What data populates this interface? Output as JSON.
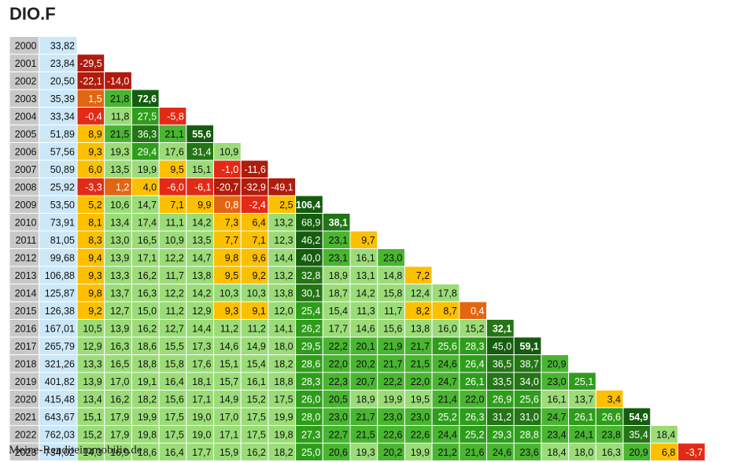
{
  "title": "DIO.F",
  "footer": "Meine-Renditeimmobilie.de",
  "chart_data": {
    "type": "table",
    "title": "DIO.F",
    "years": [
      2000,
      2001,
      2002,
      2003,
      2004,
      2005,
      2006,
      2007,
      2008,
      2009,
      2010,
      2011,
      2012,
      2013,
      2014,
      2015,
      2016,
      2017,
      2018,
      2019,
      2020,
      2021,
      2022,
      2023
    ],
    "prices": [
      "33,82",
      "23,84",
      "20,50",
      "35,39",
      "33,34",
      "51,89",
      "57,56",
      "50,89",
      "25,92",
      "53,50",
      "73,91",
      "81,05",
      "99,68",
      "106,88",
      "125,87",
      "126,38",
      "167,01",
      "265,79",
      "321,26",
      "401,82",
      "415,48",
      "643,67",
      "762,03",
      "734,02"
    ],
    "returns": [
      [],
      [
        -29.5
      ],
      [
        -22.1,
        -14.0
      ],
      [
        1.5,
        21.8,
        72.6
      ],
      [
        -0.4,
        11.8,
        27.5,
        -5.8
      ],
      [
        8.9,
        21.5,
        36.3,
        21.1,
        55.6
      ],
      [
        9.3,
        19.3,
        29.4,
        17.6,
        31.4,
        10.9
      ],
      [
        6.0,
        13.5,
        19.9,
        9.5,
        15.1,
        -1.0,
        -11.6
      ],
      [
        -3.3,
        1.2,
        4.0,
        -6.0,
        -6.1,
        -20.7,
        -32.9,
        -49.1
      ],
      [
        5.2,
        10.6,
        14.7,
        7.1,
        9.9,
        0.8,
        -2.4,
        2.5,
        106.4
      ],
      [
        8.1,
        13.4,
        17.4,
        11.1,
        14.2,
        7.3,
        6.4,
        13.2,
        68.9,
        38.1
      ],
      [
        8.3,
        13.0,
        16.5,
        10.9,
        13.5,
        7.7,
        7.1,
        12.3,
        46.2,
        23.1,
        9.7
      ],
      [
        9.4,
        13.9,
        17.1,
        12.2,
        14.7,
        9.8,
        9.6,
        14.4,
        40.0,
        23.1,
        16.1,
        23.0
      ],
      [
        9.3,
        13.3,
        16.2,
        11.7,
        13.8,
        9.5,
        9.2,
        13.2,
        32.8,
        18.9,
        13.1,
        14.8,
        7.2
      ],
      [
        9.8,
        13.7,
        16.3,
        12.2,
        14.2,
        10.3,
        10.3,
        13.8,
        30.1,
        18.7,
        14.2,
        15.8,
        12.4,
        17.8
      ],
      [
        9.2,
        12.7,
        15.0,
        11.2,
        12.9,
        9.3,
        9.1,
        12.0,
        25.4,
        15.4,
        11.3,
        11.7,
        8.2,
        8.7,
        0.4
      ],
      [
        10.5,
        13.9,
        16.2,
        12.7,
        14.4,
        11.2,
        11.2,
        14.1,
        26.2,
        17.7,
        14.6,
        15.6,
        13.8,
        16.0,
        15.2,
        32.1
      ],
      [
        12.9,
        16.3,
        18.6,
        15.5,
        17.3,
        14.6,
        14.9,
        18.0,
        29.5,
        22.2,
        20.1,
        21.9,
        21.7,
        25.6,
        28.3,
        45.0,
        59.1
      ],
      [
        13.3,
        16.5,
        18.8,
        15.8,
        17.6,
        15.1,
        15.4,
        18.2,
        28.6,
        22.0,
        20.2,
        21.7,
        21.5,
        24.6,
        26.4,
        36.5,
        38.7,
        20.9
      ],
      [
        13.9,
        17.0,
        19.1,
        16.4,
        18.1,
        15.7,
        16.1,
        18.8,
        28.3,
        22.3,
        20.7,
        22.2,
        22.0,
        24.7,
        26.1,
        33.5,
        34.0,
        23.0,
        25.1
      ],
      [
        13.4,
        16.2,
        18.2,
        15.6,
        17.1,
        14.9,
        15.2,
        17.5,
        26.0,
        20.5,
        18.9,
        19.9,
        19.5,
        21.4,
        22.0,
        26.9,
        25.6,
        16.1,
        13.7,
        3.4
      ],
      [
        15.1,
        17.9,
        19.9,
        17.5,
        19.0,
        17.0,
        17.5,
        19.9,
        28.0,
        23.0,
        21.7,
        23.0,
        23.0,
        25.2,
        26.3,
        31.2,
        31.0,
        24.7,
        26.1,
        26.6,
        54.9
      ],
      [
        15.2,
        17.9,
        19.8,
        17.5,
        19.0,
        17.1,
        17.5,
        19.8,
        27.3,
        22.7,
        21.5,
        22.6,
        22.6,
        24.4,
        25.2,
        29.3,
        28.8,
        23.4,
        24.1,
        23.8,
        35.4,
        18.4
      ],
      [
        14.3,
        16.9,
        18.6,
        16.4,
        17.7,
        15.9,
        16.2,
        18.2,
        25.0,
        20.6,
        19.3,
        20.2,
        19.9,
        21.2,
        21.6,
        24.6,
        23.6,
        18.4,
        18.0,
        16.3,
        20.9,
        6.8,
        -3.7
      ]
    ],
    "colors": {
      "year_cell": "#c8c8c8",
      "price_cell": "#cce8f8",
      "deep_red": "#b01b0c",
      "red": "#e32a16",
      "orange": "#e26612",
      "yellow": "#fcc000",
      "light_green": "#9bdc78",
      "green": "#49b531",
      "mid_green": "#2f9d1c",
      "dark_green": "#237515",
      "darkest_green": "#155d0e"
    }
  }
}
